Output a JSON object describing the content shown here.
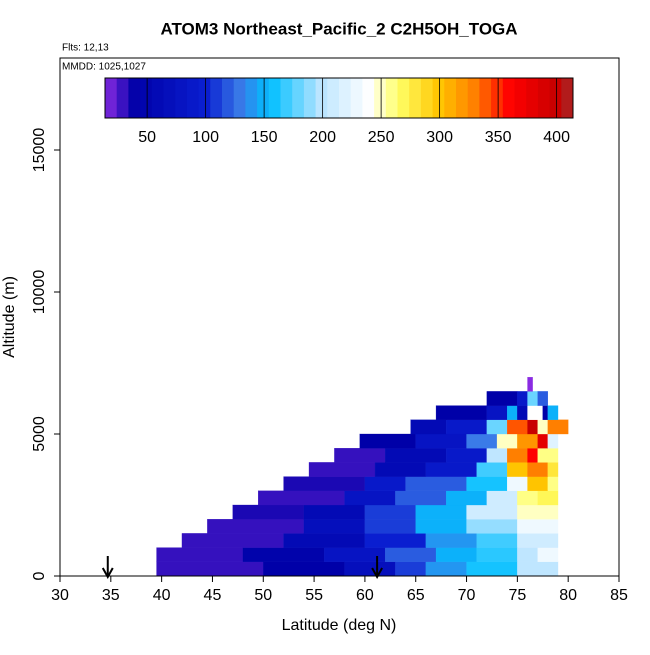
{
  "chart_data": {
    "type": "curtain",
    "title": "ATOM3 Northeast_Pacific_2 C2H5OH_TOGA",
    "flights_label": "Flts: 12,13",
    "dates_label": "MMDD: 1025,1027",
    "x_label": "Latitude (deg N)",
    "y_label": "Altitude (m)",
    "xlim": [
      30,
      85
    ],
    "ylim": [
      0,
      18240
    ],
    "xticks": [
      30,
      35,
      40,
      45,
      50,
      55,
      60,
      65,
      70,
      75,
      80,
      85
    ],
    "yticks": [
      0,
      5000,
      10000,
      15000
    ],
    "colorbar_lim": [
      14,
      414
    ],
    "colorbar_ticks": [
      50,
      100,
      150,
      200,
      250,
      300,
      350,
      400
    ],
    "colorscale": [
      [
        14,
        "#8a2be2"
      ],
      [
        40,
        "#0000a8"
      ],
      [
        100,
        "#0a1ed0"
      ],
      [
        130,
        "#3a7be8"
      ],
      [
        155,
        "#00bfff"
      ],
      [
        200,
        "#bfe6ff"
      ],
      [
        240,
        "#ffffff"
      ],
      [
        265,
        "#ffff66"
      ],
      [
        300,
        "#ffc400"
      ],
      [
        330,
        "#ff7f00"
      ],
      [
        360,
        "#ff0000"
      ],
      [
        400,
        "#c80000"
      ],
      [
        414,
        "#a52a2a"
      ]
    ],
    "arrows": [
      34.7,
      61.2
    ],
    "rows": [
      {
        "alt": [
          0,
          500
        ],
        "lat": [
          39.5,
          50,
          58,
          63,
          66,
          70,
          75,
          79
        ],
        "values": [
          30,
          40,
          70,
          110,
          140,
          160,
          200
        ]
      },
      {
        "alt": [
          500,
          1000
        ],
        "lat": [
          39.5,
          48,
          56,
          62,
          67,
          71,
          75,
          77,
          79
        ],
        "values": [
          30,
          45,
          80,
          120,
          150,
          165,
          200,
          230
        ]
      },
      {
        "alt": [
          1000,
          1500
        ],
        "lat": [
          42,
          52,
          60,
          66,
          71,
          75,
          79
        ],
        "values": [
          30,
          60,
          100,
          140,
          170,
          210
        ]
      },
      {
        "alt": [
          1500,
          2000
        ],
        "lat": [
          44.5,
          54,
          60,
          65,
          70,
          75,
          79
        ],
        "values": [
          30,
          70,
          110,
          150,
          190,
          230
        ]
      },
      {
        "alt": [
          2000,
          2500
        ],
        "lat": [
          47,
          54,
          60,
          65,
          70,
          75,
          79
        ],
        "values": [
          35,
          60,
          110,
          150,
          210,
          250
        ]
      },
      {
        "alt": [
          2500,
          3000
        ],
        "lat": [
          49.5,
          58,
          63,
          68,
          72,
          75,
          77,
          79
        ],
        "values": [
          30,
          80,
          120,
          150,
          210,
          260,
          270
        ]
      },
      {
        "alt": [
          3000,
          3500
        ],
        "lat": [
          52,
          60,
          64,
          70,
          74,
          76,
          78,
          79
        ],
        "values": [
          35,
          90,
          120,
          160,
          230,
          300,
          260
        ]
      },
      {
        "alt": [
          3500,
          4000
        ],
        "lat": [
          54.5,
          61,
          66,
          71,
          74,
          76,
          78,
          79
        ],
        "values": [
          30,
          60,
          90,
          170,
          300,
          330,
          280
        ]
      },
      {
        "alt": [
          4000,
          4500
        ],
        "lat": [
          57,
          62,
          68,
          72,
          74,
          76,
          77,
          79
        ],
        "values": [
          30,
          60,
          90,
          200,
          330,
          360,
          260
        ]
      },
      {
        "alt": [
          4500,
          5000
        ],
        "lat": [
          59.5,
          65,
          70,
          73,
          75,
          77,
          78,
          79
        ],
        "values": [
          40,
          80,
          130,
          250,
          320,
          380,
          220
        ]
      },
      {
        "alt": [
          5000,
          5500
        ],
        "lat": [
          64.5,
          68,
          72,
          74,
          76,
          77,
          78,
          80
        ],
        "values": [
          60,
          90,
          180,
          340,
          400,
          250,
          330
        ]
      },
      {
        "alt": [
          5500,
          6000
        ],
        "lat": [
          67,
          72,
          74,
          75,
          76,
          77.5,
          78,
          79
        ],
        "values": [
          40,
          80,
          150,
          60,
          240,
          40,
          150
        ]
      },
      {
        "alt": [
          6000,
          6500
        ],
        "lat": [
          72,
          75,
          76,
          77,
          78
        ],
        "values": [
          40,
          90,
          180,
          120
        ]
      },
      {
        "alt": [
          6500,
          7000
        ],
        "lat": [
          76,
          76.5
        ],
        "values": [
          14
        ]
      }
    ]
  }
}
